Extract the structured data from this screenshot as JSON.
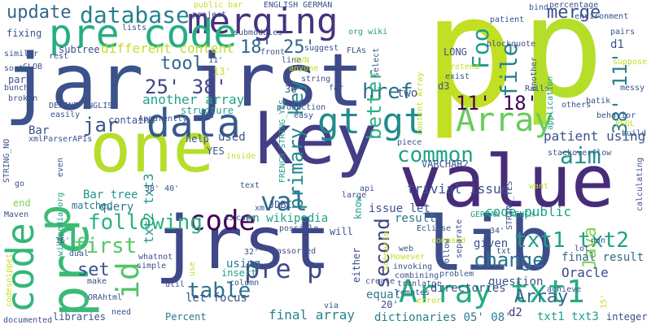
{
  "words": [
    {
      "text": "p",
      "color": "#c2df23"
    },
    {
      "text": "p",
      "color": "#b5de2b"
    },
    {
      "text": "jar",
      "color": "#3b528b"
    },
    {
      "text": "jrst",
      "color": "#3e4a89"
    },
    {
      "text": "jrst",
      "color": "#3f4788"
    },
    {
      "text": "lib",
      "color": "#3d4e8a"
    },
    {
      "text": "key",
      "color": "#433e85"
    },
    {
      "text": "value",
      "color": "#472c7a"
    },
    {
      "text": "one",
      "color": "#b5de2b"
    },
    {
      "text": "merging",
      "color": "#46337f"
    },
    {
      "text": "pre code",
      "color": "#26ad81"
    },
    {
      "text": "data",
      "color": "#375a8c"
    },
    {
      "text": "code",
      "color": "#34b679"
    },
    {
      "text": "pre",
      "color": "#3aba76"
    },
    {
      "text": "p",
      "color": "#3ebc74"
    },
    {
      "text": "code",
      "color": "#440154"
    },
    {
      "text": "gt gt",
      "color": "#228b8d"
    },
    {
      "text": "Array",
      "color": "#67cc5c"
    },
    {
      "text": "Array txt1",
      "color": "#25ac82"
    },
    {
      "text": "pre p",
      "color": "#3e4c8a"
    },
    {
      "text": "val",
      "color": "#2e6f8e"
    },
    {
      "text": "id",
      "color": "#50c46a"
    },
    {
      "text": "database",
      "color": "#26828e"
    },
    {
      "text": "update",
      "color": "#31688e"
    },
    {
      "text": "25' 38'",
      "color": "#404588"
    },
    {
      "text": "18' 25'",
      "color": "#32658e"
    },
    {
      "text": "11' 18'",
      "color": "#440154"
    },
    {
      "text": "38' 11'",
      "color": "#287d8e"
    },
    {
      "text": "file",
      "color": "#26828e"
    },
    {
      "text": "Foo",
      "color": "#1e9c89"
    },
    {
      "text": "merge",
      "color": "#3b528b"
    },
    {
      "text": "href",
      "color": "#2c728e"
    },
    {
      "text": "better",
      "color": "#29af7f"
    },
    {
      "text": "common",
      "color": "#20a386"
    },
    {
      "text": "aim",
      "color": "#20928c"
    },
    {
      "text": "following",
      "color": "#2db27d"
    },
    {
      "text": "change",
      "color": "#2c728e"
    },
    {
      "text": "second",
      "color": "#414487"
    },
    {
      "text": "txt1 txt2",
      "color": "#1fa088"
    },
    {
      "text": "table",
      "color": "#2c728e"
    },
    {
      "text": "first",
      "color": "#58c765"
    },
    {
      "text": "set",
      "color": "#3b528b"
    },
    {
      "text": "primary key",
      "color": "#24868e"
    },
    {
      "text": "tool",
      "color": "#31688e"
    },
    {
      "text": "jar",
      "color": "#3b528b"
    },
    {
      "text": "Java",
      "color": "#81d34d"
    },
    {
      "text": "trivial issue",
      "color": "#3b528b"
    },
    {
      "text": "patient using",
      "color": "#3b528b"
    },
    {
      "text": "code public",
      "color": "#1fa088"
    },
    {
      "text": "final result",
      "color": "#31688e"
    },
    {
      "text": "Oracle",
      "color": "#3e4a89"
    },
    {
      "text": "another array",
      "color": "#20a386"
    },
    {
      "text": "different content",
      "color": "#c2df23"
    },
    {
      "text": "txt2 txt3",
      "color": "#1f988b"
    },
    {
      "text": "final array",
      "color": "#26828e"
    },
    {
      "text": "dictionaries 05' 08'",
      "color": "#277f8e"
    },
    {
      "text": "Array",
      "color": "#31688e"
    },
    {
      "text": "txt1 txt3",
      "color": "#1f9e89"
    },
    {
      "text": "let focus",
      "color": "#3b528b"
    },
    {
      "text": "given",
      "color": "#3b528b"
    },
    {
      "text": "result",
      "color": "#2a788e"
    },
    {
      "text": "using",
      "color": "#2a788e"
    },
    {
      "text": "issue let",
      "color": "#3b528b"
    },
    {
      "text": "d2",
      "color": "#46337f"
    },
    {
      "text": "question",
      "color": "#3b528b"
    },
    {
      "text": "directories",
      "color": "#3b528b"
    },
    {
      "text": "equal",
      "color": "#2a788e"
    },
    {
      "text": "two",
      "color": "#3b528b"
    },
    {
      "text": "d1",
      "color": "#3b528b"
    },
    {
      "text": "d3",
      "color": "#3b528b"
    },
    {
      "text": "Bar",
      "color": "#3b528b"
    },
    {
      "text": "Bar tree",
      "color": "#1f988b"
    },
    {
      "text": "query",
      "color": "#2a788e"
    },
    {
      "text": "matched",
      "color": "#2a788e"
    },
    {
      "text": "end",
      "color": "#7ad151"
    },
    {
      "text": "en wikipedia",
      "color": "#1f9e89"
    },
    {
      "text": "JDBC",
      "color": "#3b528b"
    },
    {
      "text": "help",
      "color": "#3b528b"
    },
    {
      "text": "used",
      "color": "#3b528b"
    },
    {
      "text": "contains",
      "color": "#3b528b"
    },
    {
      "text": "part",
      "color": "#3b528b"
    },
    {
      "text": "subtree",
      "color": "#3b528b"
    },
    {
      "text": "fixing",
      "color": "#3b528b"
    },
    {
      "text": "LONG",
      "color": "#3b528b"
    },
    {
      "text": "VARCHAR2",
      "color": "#3b528b"
    },
    {
      "text": "YES",
      "color": "#3b528b"
    },
    {
      "text": "Percent",
      "color": "#2a788e"
    },
    {
      "text": "html",
      "color": "#3b528b"
    },
    {
      "text": "make",
      "color": "#3b528b"
    },
    {
      "text": "need",
      "color": "#3b528b"
    },
    {
      "text": "libraries",
      "color": "#3b528b"
    },
    {
      "text": "documented",
      "color": "#3b528b"
    },
    {
      "text": "integer",
      "color": "#3b528b"
    },
    {
      "text": "percentage",
      "color": "#3b528b"
    },
    {
      "text": "environment",
      "color": "#3b528b"
    },
    {
      "text": "patient",
      "color": "#3b528b"
    },
    {
      "text": "bind",
      "color": "#3b528b"
    },
    {
      "text": "public bar",
      "color": "#c2df23"
    },
    {
      "text": "project",
      "color": "#3b528b"
    },
    {
      "text": "ENGLISH GERMAN",
      "color": "#3b528b"
    },
    {
      "text": "org wiki",
      "color": "#1f9e89"
    },
    {
      "text": "submodules",
      "color": "#3b528b"
    },
    {
      "text": "line",
      "color": "#3b528b"
    },
    {
      "text": "SVN",
      "color": "#c2df23"
    },
    {
      "text": "front",
      "color": "#3b528b"
    },
    {
      "text": "suggest",
      "color": "#3b528b"
    },
    {
      "text": "FLAs",
      "color": "#3b528b"
    },
    {
      "text": "blockquote",
      "color": "#3b528b"
    },
    {
      "text": "pairs",
      "color": "#3b528b"
    },
    {
      "text": "rest",
      "color": "#3b528b"
    },
    {
      "text": "lists",
      "color": "#3b528b"
    },
    {
      "text": "similar",
      "color": "#3b528b"
    },
    {
      "text": "CLOB",
      "color": "#3b528b"
    },
    {
      "text": "sorts",
      "color": "#3b528b"
    },
    {
      "text": "bunch",
      "color": "#3b528b"
    },
    {
      "text": "broken",
      "color": "#3b528b"
    },
    {
      "text": "easily",
      "color": "#3b528b"
    },
    {
      "text": "DEFINE ENGLISH",
      "color": "#3b528b"
    },
    {
      "text": "Apparently",
      "color": "#3b528b"
    },
    {
      "text": "xmlParserAPIs",
      "color": "#3b528b"
    },
    {
      "text": "STRING_NO",
      "color": "#3b528b"
    },
    {
      "text": "Maven",
      "color": "#3b528b"
    },
    {
      "text": "go",
      "color": "#3b528b"
    },
    {
      "text": "even",
      "color": "#3b528b"
    },
    {
      "text": "wikipedia org",
      "color": "#1f9e89"
    },
    {
      "text": "dual",
      "color": "#3b528b"
    },
    {
      "text": "codesnippet",
      "color": "#c2df23"
    },
    {
      "text": "ORA",
      "color": "#3b528b"
    },
    {
      "text": "16'",
      "color": "#3b528b"
    },
    {
      "text": "whatnot",
      "color": "#3b528b"
    },
    {
      "text": "simple",
      "color": "#3b528b"
    },
    {
      "text": "util",
      "color": "#3b528b"
    },
    {
      "text": "use",
      "color": "#c2df23"
    },
    {
      "text": "43'",
      "color": "#3b528b"
    },
    {
      "text": "cake",
      "color": "#3b528b"
    },
    {
      "text": "inside",
      "color": "#c2df23"
    },
    {
      "text": "xml",
      "color": "#3b528b"
    },
    {
      "text": "possible",
      "color": "#3b528b"
    },
    {
      "text": "assorted",
      "color": "#3b528b"
    },
    {
      "text": "32'",
      "color": "#3b528b"
    },
    {
      "text": "insert",
      "color": "#1f9e89"
    },
    {
      "text": "column",
      "color": "#3b528b"
    },
    {
      "text": "via",
      "color": "#3b528b"
    },
    {
      "text": "will",
      "color": "#3b528b"
    },
    {
      "text": "text",
      "color": "#3b528b"
    },
    {
      "text": "36'",
      "color": "#3b528b"
    },
    {
      "text": "production",
      "color": "#3b528b"
    },
    {
      "text": "easy",
      "color": "#3b528b"
    },
    {
      "text": "far",
      "color": "#3b528b"
    },
    {
      "text": "string",
      "color": "#3b528b"
    },
    {
      "text": "anyone",
      "color": "#c2df23"
    },
    {
      "text": "11'",
      "color": "#3b528b"
    },
    {
      "text": "13'",
      "color": "#c2df23"
    },
    {
      "text": "FRENCH STRING_YES",
      "color": "#1f9e89"
    },
    {
      "text": "structure",
      "color": "#1f9e89"
    },
    {
      "text": "38' 40'",
      "color": "#3b528b"
    },
    {
      "text": "content Array",
      "color": "#c2df23"
    },
    {
      "text": "select",
      "color": "#3b528b"
    },
    {
      "text": "know",
      "color": "#1f9e89"
    },
    {
      "text": "either",
      "color": "#3b528b"
    },
    {
      "text": "20'",
      "color": "#3b528b"
    },
    {
      "text": "Eclipse",
      "color": "#3b528b"
    },
    {
      "text": "large",
      "color": "#3b528b"
    },
    {
      "text": "api",
      "color": "#3b528b"
    },
    {
      "text": "piece",
      "color": "#3b528b"
    },
    {
      "text": "GERMAN FRENCH",
      "color": "#1f9e89"
    },
    {
      "text": "However",
      "color": "#c2df23"
    },
    {
      "text": "invoking",
      "color": "#3b528b"
    },
    {
      "text": "combining",
      "color": "#3b528b"
    },
    {
      "text": "tranlator",
      "color": "#3b528b"
    },
    {
      "text": "remotes",
      "color": "#3b528b"
    },
    {
      "text": "create",
      "color": "#3b528b"
    },
    {
      "text": "scenario",
      "color": "#c2df23"
    },
    {
      "text": "error",
      "color": "#c2df23"
    },
    {
      "text": "problem",
      "color": "#3b528b"
    },
    {
      "text": "web",
      "color": "#3b528b"
    },
    {
      "text": "command",
      "color": "#c2df23"
    },
    {
      "text": "txt",
      "color": "#3b528b"
    },
    {
      "text": "follow",
      "color": "#3b528b"
    },
    {
      "text": "separate",
      "color": "#3b528b"
    },
    {
      "text": "STRING_YES",
      "color": "#3b528b"
    },
    {
      "text": "34'",
      "color": "#3b528b"
    },
    {
      "text": "non",
      "color": "#3b528b"
    },
    {
      "text": "lot",
      "color": "#3b528b"
    },
    {
      "text": "want",
      "color": "#c2df23"
    },
    {
      "text": "achieve",
      "color": "#3b528b"
    },
    {
      "text": "15'",
      "color": "#c2df23"
    },
    {
      "text": "Rails",
      "color": "#3b528b"
    },
    {
      "text": "batik",
      "color": "#3b528b"
    },
    {
      "text": "behavior",
      "color": "#3b528b"
    },
    {
      "text": "PSQL",
      "color": "#c2df23"
    },
    {
      "text": "build",
      "color": "#3b528b"
    },
    {
      "text": "calculating",
      "color": "#3b528b"
    },
    {
      "text": "stackoverflow",
      "color": "#3b528b"
    },
    {
      "text": "others",
      "color": "#3b528b"
    },
    {
      "text": "another",
      "color": "#3b528b"
    },
    {
      "text": "application",
      "color": "#1f9e89"
    },
    {
      "text": "exist",
      "color": "#3b528b"
    },
    {
      "text": "pretend",
      "color": "#c2df23"
    },
    {
      "text": "suppose",
      "color": "#c2df23"
    },
    {
      "text": "messy",
      "color": "#3b528b"
    }
  ]
}
